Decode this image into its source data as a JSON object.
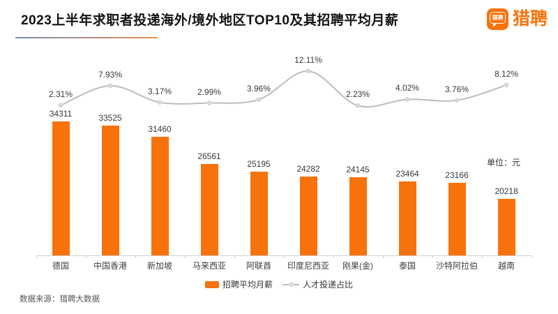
{
  "header": {
    "title": "2023上半年求职者投递海外/境外地区TOP10及其招聘平均月薪",
    "logo_text": "猎聘",
    "logo_bubble_text": "猎聘",
    "brand_color": "#f8720b"
  },
  "chart_data": {
    "type": "bar+line",
    "title": "2023上半年求职者投递海外/境外地区TOP10及其招聘平均月薪",
    "categories": [
      "德国",
      "中国香港",
      "新加坡",
      "马来西亚",
      "阿联酋",
      "印度尼西亚",
      "刚果(金)",
      "泰国",
      "沙特阿拉伯",
      "越南"
    ],
    "series": [
      {
        "name": "招聘平均月薪",
        "type": "bar",
        "color": "#f8720b",
        "unit": "元",
        "values": [
          34311,
          33525,
          31460,
          26561,
          25195,
          24282,
          24145,
          23464,
          23166,
          20218
        ]
      },
      {
        "name": "人才投递占比",
        "type": "line",
        "color": "#bcbcbc",
        "dot_color": "#d8d8d8",
        "unit": "%",
        "values": [
          2.31,
          7.93,
          3.17,
          2.99,
          3.96,
          12.11,
          2.23,
          4.02,
          3.76,
          8.12
        ]
      }
    ],
    "unit_label": "单位：元",
    "legend_position": "bottom",
    "grid": false,
    "value_axis_visible": false
  },
  "footer": {
    "source": "数据来源：猎聘大数据"
  }
}
